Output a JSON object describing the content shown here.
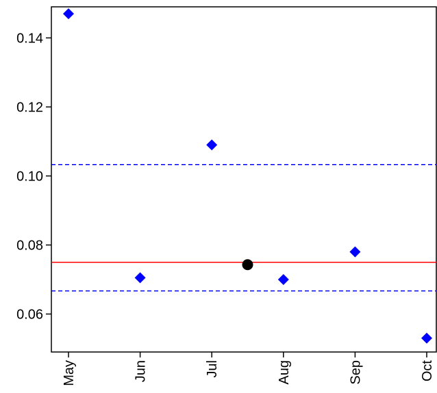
{
  "chart_data": {
    "type": "scatter",
    "title": "",
    "xlabel": "",
    "ylabel": "",
    "categories": [
      "May",
      "Jun",
      "Jul",
      "Aug",
      "Sep",
      "Oct"
    ],
    "ylim": [
      0.049,
      0.149
    ],
    "y_ticks": [
      "0.06",
      "0.08",
      "0.10",
      "0.12",
      "0.14"
    ],
    "series": [
      {
        "marker": "diamond",
        "color": "#0000ff",
        "points": [
          {
            "x": "May",
            "y": 0.147
          },
          {
            "x": "Jun",
            "y": 0.0705
          },
          {
            "x": "Jul",
            "y": 0.109
          },
          {
            "x": "Aug",
            "y": 0.07
          },
          {
            "x": "Sep",
            "y": 0.078
          },
          {
            "x": "Oct",
            "y": 0.053
          }
        ]
      },
      {
        "marker": "circle",
        "color": "#000000",
        "points": [
          {
            "x": "Jul-Aug midpoint",
            "x_index": 2.5,
            "y": 0.0743
          }
        ]
      }
    ],
    "reference_lines": [
      {
        "y": 0.075,
        "style": "solid",
        "color": "#ff0000"
      },
      {
        "y": 0.1033,
        "style": "dashed",
        "color": "#0000ff"
      },
      {
        "y": 0.0667,
        "style": "dashed",
        "color": "#0000ff"
      }
    ],
    "grid": false,
    "legend": "none"
  }
}
